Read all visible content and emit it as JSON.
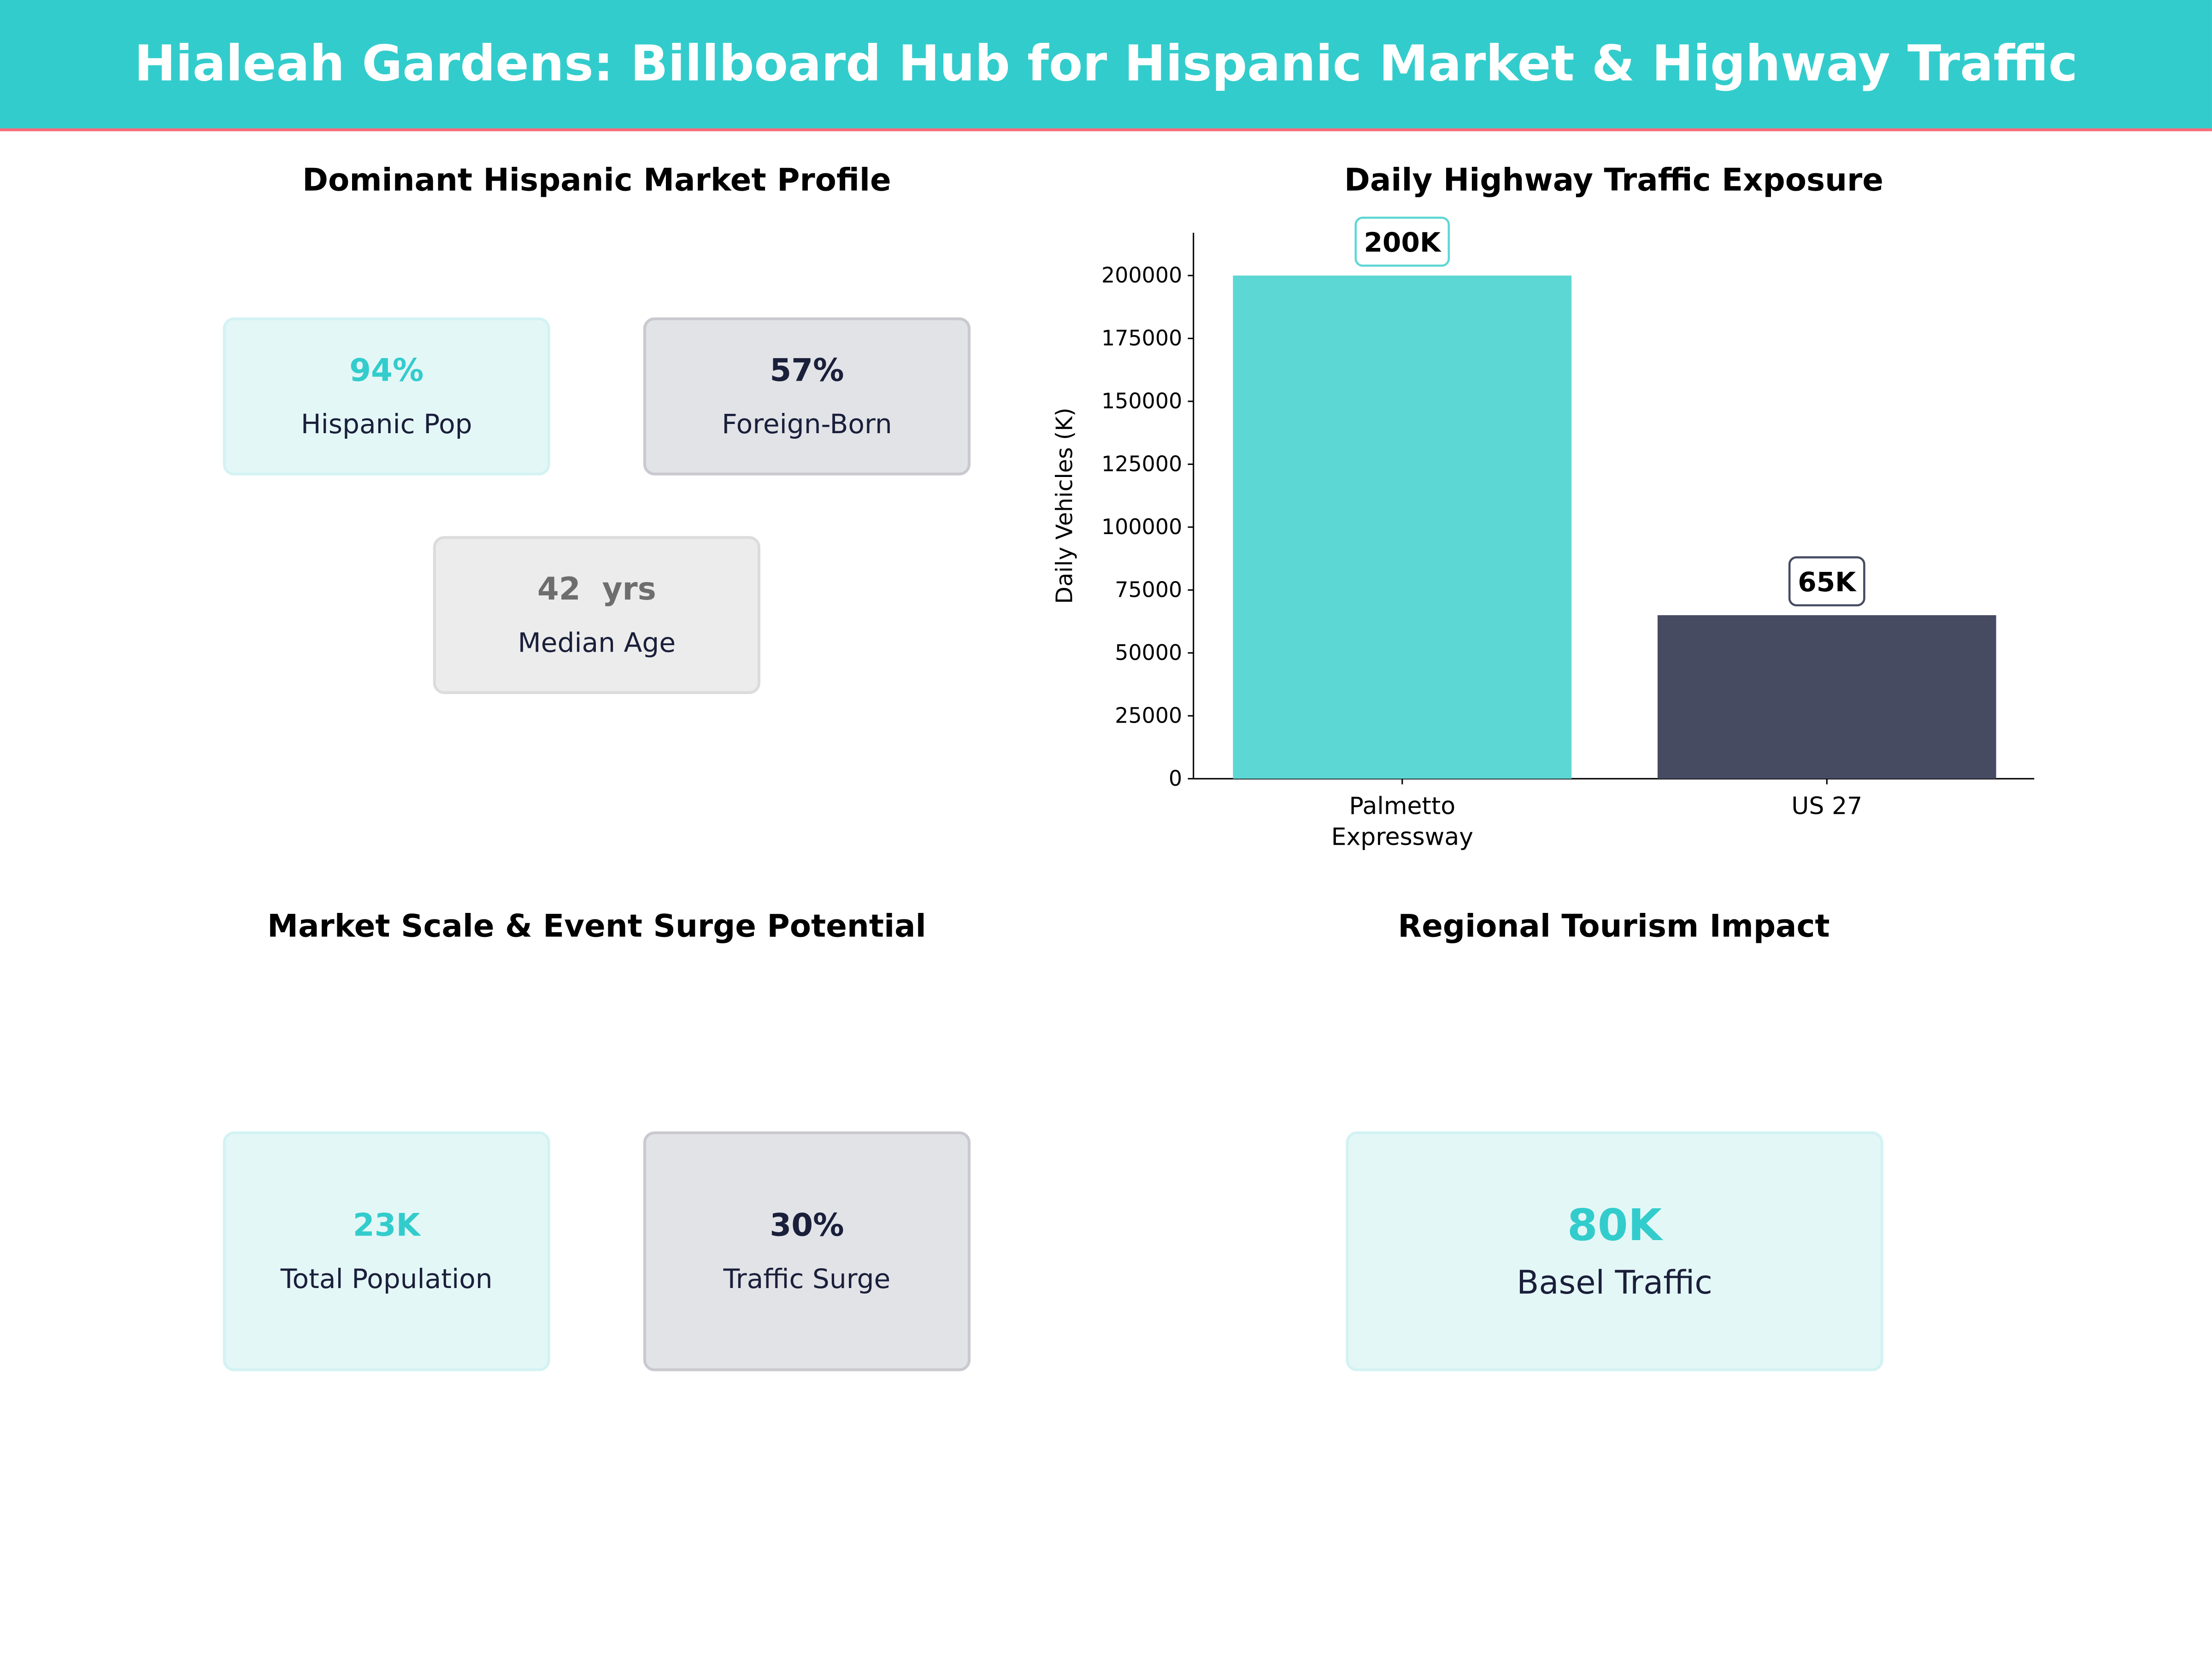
{
  "header": {
    "title": "Hialeah Gardens: Billboard Hub for Hispanic Market & Highway Traffic"
  },
  "panels": {
    "market_profile": {
      "title": "Dominant Hispanic Market Profile",
      "cards": [
        {
          "value": "94%",
          "label": "Hispanic Pop",
          "color": "#33cccc"
        },
        {
          "value": "57%",
          "label": "Foreign-Born",
          "color": "#1a1f3a"
        },
        {
          "value": "42  yrs",
          "label": "Median Age",
          "color": "#6e6e6e"
        }
      ]
    },
    "market_scale": {
      "title": "Market Scale & Event Surge Potential",
      "cards": [
        {
          "value": "23K",
          "label": "Total Population",
          "color": "#33cccc"
        },
        {
          "value": "30%",
          "label": "Traffic Surge",
          "color": "#1a1f3a"
        }
      ]
    },
    "tourism": {
      "title": "Regional Tourism Impact",
      "cards": [
        {
          "value": "80K",
          "label": "Basel Traffic",
          "color": "#33cccc"
        }
      ]
    }
  },
  "chart_data": {
    "type": "bar",
    "title": "Daily Highway Traffic Exposure",
    "categories": [
      "Palmetto\nExpressway",
      "US 27"
    ],
    "values": [
      200000,
      65000
    ],
    "data_labels": [
      "200K",
      "65K"
    ],
    "colors": [
      "#5dd7d4",
      "#464b62"
    ],
    "xlabel": "",
    "ylabel": "Daily Vehicles (K)",
    "ylim": [
      0,
      217000
    ],
    "yticks": [
      0,
      25000,
      50000,
      75000,
      100000,
      125000,
      150000,
      175000,
      200000
    ],
    "grid": false
  }
}
